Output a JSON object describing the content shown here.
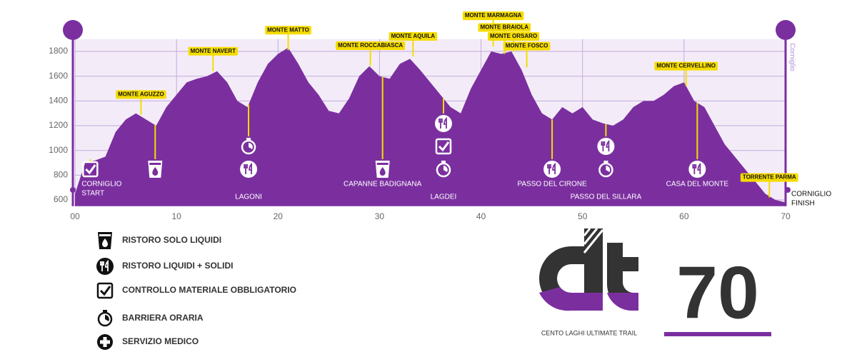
{
  "chart_data": {
    "type": "area",
    "color": "#7b2f9f",
    "x": [
      0,
      1,
      2,
      3,
      4,
      5,
      6,
      7,
      8,
      9,
      10,
      11,
      12,
      13,
      14,
      15,
      16,
      17,
      18,
      19,
      20,
      21,
      22,
      23,
      24,
      25,
      26,
      27,
      28,
      29,
      30,
      31,
      32,
      33,
      34,
      35,
      36,
      37,
      38,
      39,
      40,
      41,
      42,
      43,
      44,
      45,
      46,
      47,
      48,
      49,
      50,
      51,
      52,
      53,
      54,
      55,
      56,
      57,
      58,
      59,
      60,
      61,
      62,
      63,
      64,
      65,
      66,
      67,
      68,
      69,
      70
    ],
    "values": [
      650,
      900,
      920,
      950,
      1150,
      1250,
      1300,
      1250,
      1200,
      1350,
      1450,
      1550,
      1580,
      1600,
      1640,
      1550,
      1400,
      1350,
      1550,
      1700,
      1780,
      1830,
      1700,
      1550,
      1450,
      1320,
      1300,
      1420,
      1600,
      1680,
      1600,
      1580,
      1700,
      1740,
      1650,
      1550,
      1450,
      1350,
      1300,
      1500,
      1650,
      1800,
      1780,
      1800,
      1650,
      1450,
      1300,
      1250,
      1350,
      1300,
      1350,
      1250,
      1220,
      1200,
      1250,
      1350,
      1400,
      1400,
      1450,
      1520,
      1550,
      1400,
      1350,
      1200,
      1050,
      950,
      850,
      750,
      650,
      600,
      580
    ],
    "xlim": [
      0,
      70
    ],
    "ylim": [
      550,
      1900
    ],
    "xticks": [
      {
        "value": 0,
        "label": "00"
      },
      10,
      20,
      30,
      40,
      50,
      60,
      70
    ],
    "yticks": [
      600,
      800,
      1000,
      1200,
      1400,
      1600,
      1800
    ],
    "grid": true,
    "side_label": "Corniglio",
    "peaks": [
      {
        "label": "MONTE AGUZZO",
        "x": 6.5,
        "elevation": 1290
      },
      {
        "label": "MONTE NAVERT",
        "x": 13.6,
        "elevation": 1640
      },
      {
        "label": "MONTE MATTO",
        "x": 21,
        "elevation": 1810
      },
      {
        "label": "MONTE ROCCABIASCA",
        "x": 29.1,
        "elevation": 1685
      },
      {
        "label": "MONTE AQUILA",
        "x": 33.3,
        "elevation": 1760
      },
      {
        "label": "MONTE MARMAGNA",
        "x": 41.2,
        "elevation": 1840
      },
      {
        "label": "MONTE BRAIOLA",
        "x": 42.3,
        "elevation": 1780
      },
      {
        "label": "MONTE ORSARO",
        "x": 43.2,
        "elevation": 1800
      },
      {
        "label": "MONTE FOSCO",
        "x": 44.5,
        "elevation": 1670
      },
      {
        "label": "MONTE CERVELLINO",
        "x": 60.2,
        "elevation": 1520
      },
      {
        "label": "TORRENTE PARMA",
        "x": 68.4,
        "elevation": 620
      }
    ],
    "stations": [
      {
        "label": [
          "CORNIGLIO",
          "START"
        ],
        "x": 1.5,
        "services": [
          2
        ]
      },
      {
        "label": [],
        "x": 7.9,
        "services": [
          0
        ]
      },
      {
        "label": [
          "LAGONI"
        ],
        "x": 17.1,
        "services": [
          3,
          1
        ]
      },
      {
        "label": [
          "CAPANNE BADIGNANA"
        ],
        "x": 30.3,
        "services": [
          0
        ]
      },
      {
        "label": [
          "LAGDEI"
        ],
        "x": 36.3,
        "services": [
          1,
          2,
          3
        ]
      },
      {
        "label": [
          "PASSO DEL CIRONE"
        ],
        "x": 47,
        "services": [
          1
        ]
      },
      {
        "label": [
          "PASSO DEL SILLARA"
        ],
        "x": 52.3,
        "services": [
          1,
          3
        ]
      },
      {
        "label": [
          "CASA DEL MONTE"
        ],
        "x": 61.3,
        "services": [
          1
        ]
      }
    ],
    "finish_label": [
      "CORNIGLIO",
      "FINISH"
    ]
  },
  "legend": [
    "RISTORO SOLO LIQUIDI",
    "RISTORO LIQUIDI + SOLIDI",
    "CONTROLLO MATERIALE OBBLIGATORIO",
    "BARRIERA ORARIA",
    "SERVIZIO MEDICO"
  ],
  "logo": {
    "tagline": "CENTO LAGHI ULTIMATE TRAIL",
    "distance": "70"
  }
}
